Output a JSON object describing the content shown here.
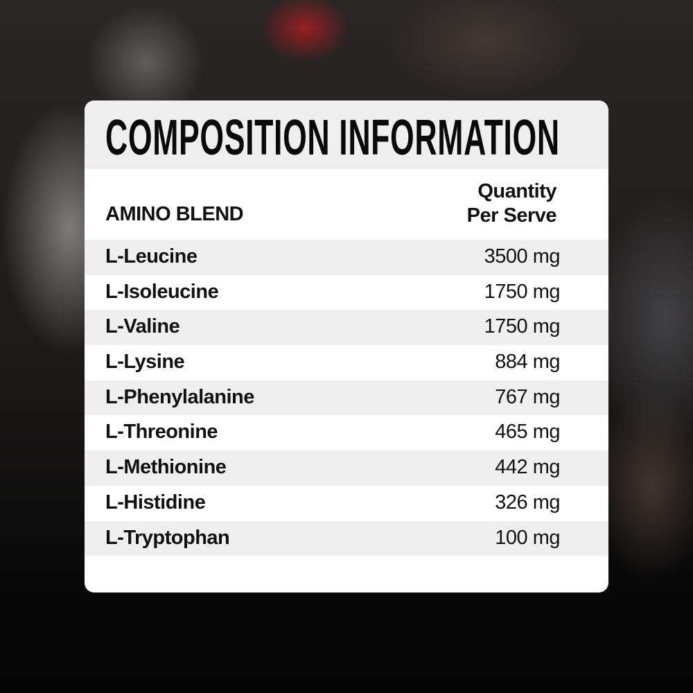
{
  "title": "COMPOSITION INFORMATION",
  "columns": {
    "left": "AMINO BLEND",
    "right_line1": "Quantity",
    "right_line2": "Per Serve"
  },
  "rows": [
    {
      "name": "L-Leucine",
      "qty": "3500 mg"
    },
    {
      "name": "L-Isoleucine",
      "qty": "1750 mg"
    },
    {
      "name": "L-Valine",
      "qty": "1750 mg"
    },
    {
      "name": "L-Lysine",
      "qty": "884 mg"
    },
    {
      "name": "L-Phenylalanine",
      "qty": "767 mg"
    },
    {
      "name": "L-Threonine",
      "qty": "465 mg"
    },
    {
      "name": "L-Methionine",
      "qty": "442 mg"
    },
    {
      "name": "L-Histidine",
      "qty": "326 mg"
    },
    {
      "name": "L-Tryptophan",
      "qty": "100 mg"
    }
  ]
}
